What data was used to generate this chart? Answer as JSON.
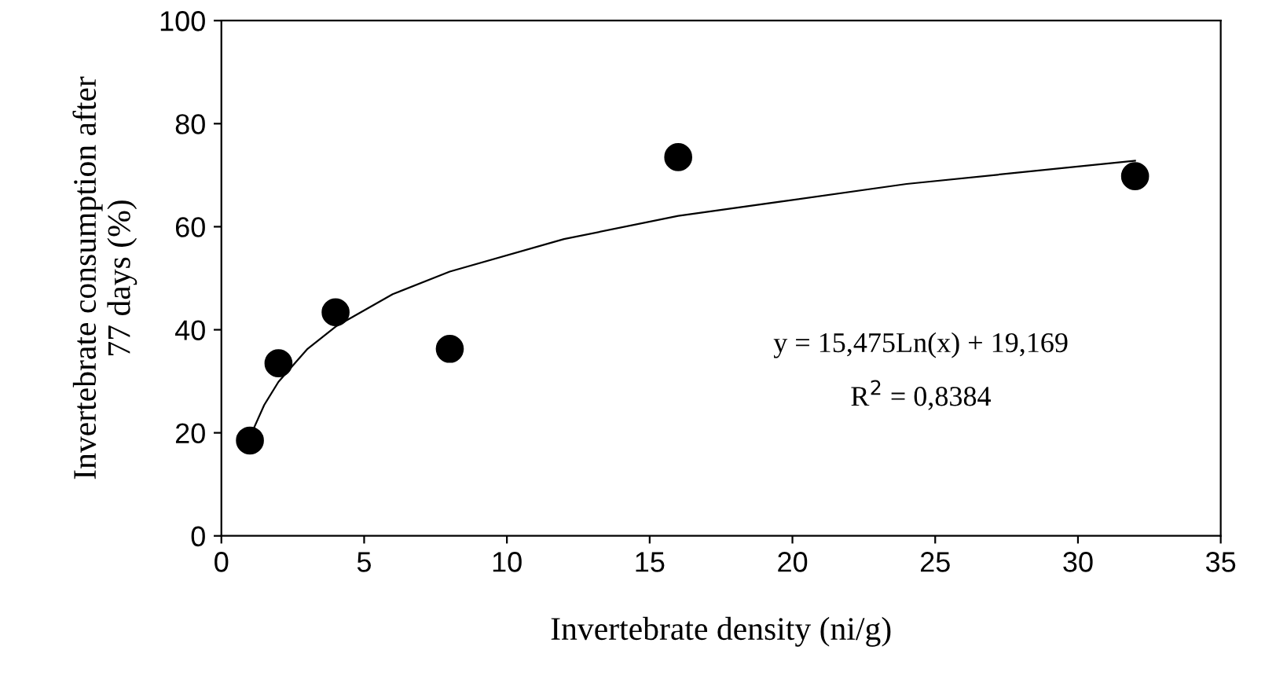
{
  "chart_data": {
    "type": "scatter",
    "xlabel": "Invertebrate density (ni/g)",
    "ylabel": "Invertebrate consumption after\n77 days (%)",
    "x": [
      1,
      2,
      4,
      8,
      16,
      32
    ],
    "series": [
      {
        "color": "#000000",
        "values": [
          18.5,
          33.5,
          43.4,
          36.3,
          73.5,
          69.8
        ],
        "marker": "circle"
      },
      {
        "type": "line",
        "color": "#000000",
        "x": [
          1,
          1.5,
          2,
          3,
          4,
          6,
          8,
          12,
          16,
          24,
          32
        ],
        "values": [
          19.2,
          25.4,
          29.9,
          36.2,
          40.6,
          46.9,
          51.3,
          57.6,
          62.1,
          68.3,
          72.8
        ],
        "marker": "none",
        "line_style": "solid"
      }
    ],
    "annotations": [
      "y = 15,475Ln(x) + 19,169",
      "R$^{2}$ = 0,8384"
    ],
    "xlim": [
      0,
      35
    ],
    "xticks": [
      0,
      5,
      10,
      15,
      20,
      25,
      30,
      35
    ],
    "ylim": [
      0,
      100
    ],
    "yticks": [
      0,
      20,
      40,
      60,
      80,
      100
    ],
    "grid": false,
    "legend": false
  }
}
